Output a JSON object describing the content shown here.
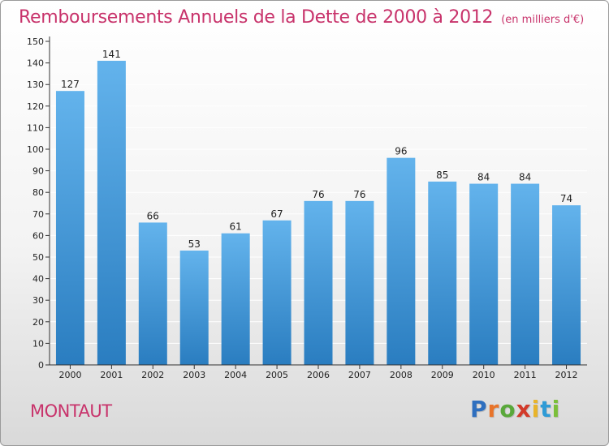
{
  "title": "Remboursements Annuels de la Dette de 2000 à 2012",
  "unit_note": "(en milliers d'€)",
  "commune": "MONTAUT",
  "brand": {
    "text": "Proxiti",
    "letters": [
      "P",
      "r",
      "o",
      "x",
      "i",
      "t",
      "i"
    ],
    "colors": [
      "#2e6fbf",
      "#e8742a",
      "#59a83a",
      "#d23a2a",
      "#e8b42a",
      "#2e9bd6",
      "#7bbf3a"
    ]
  },
  "colors": {
    "title": "#c8336b",
    "bar_top": "#63b3ec",
    "bar_bottom": "#2a7dc0",
    "axis": "#333333",
    "grid": "#ffffff"
  },
  "chart_data": {
    "type": "bar",
    "categories": [
      "2000",
      "2001",
      "2002",
      "2003",
      "2004",
      "2005",
      "2006",
      "2007",
      "2008",
      "2009",
      "2010",
      "2011",
      "2012"
    ],
    "values": [
      127,
      141,
      66,
      53,
      61,
      67,
      76,
      76,
      96,
      85,
      84,
      84,
      74
    ],
    "data_labels": [
      "127",
      "141",
      "66",
      "53",
      "61",
      "67",
      "76",
      "76",
      "96",
      "85",
      "84",
      "84",
      "74"
    ],
    "ylim": [
      0,
      150
    ],
    "yticks": [
      0,
      10,
      20,
      30,
      40,
      50,
      60,
      70,
      80,
      90,
      100,
      110,
      120,
      130,
      140,
      150
    ],
    "xlabel": "",
    "ylabel": "",
    "grid": true
  }
}
